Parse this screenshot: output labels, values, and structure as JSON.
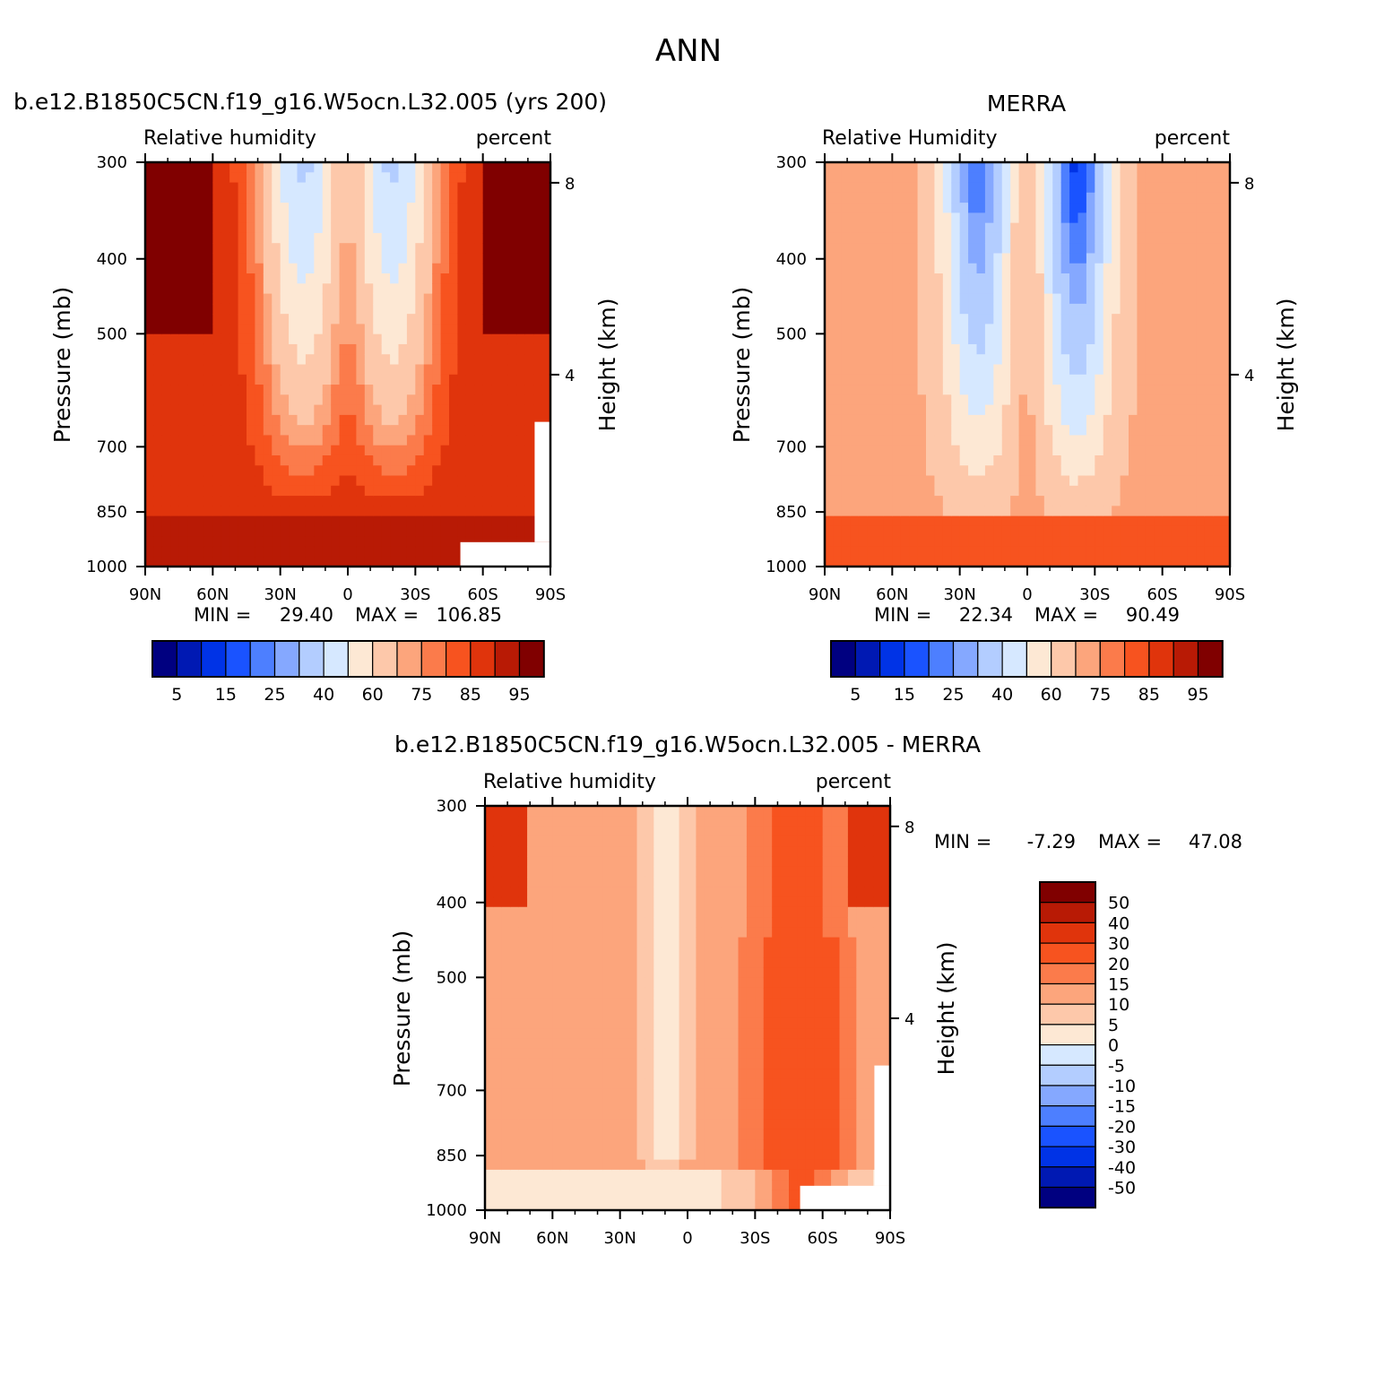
{
  "page_title": "ANN",
  "colors": {
    "rh_scale": [
      "#000080",
      "#0019b3",
      "#0033e6",
      "#1a53ff",
      "#4d7fff",
      "#85a8ff",
      "#b3cdff",
      "#d6e8ff",
      "#fde8d4",
      "#fdc8aa",
      "#fca57c",
      "#fb7b4b",
      "#f7531f",
      "#e0340c",
      "#b81a05",
      "#800000"
    ],
    "diff_scale": [
      "#000080",
      "#0019b3",
      "#0033e6",
      "#1a53ff",
      "#4d7fff",
      "#85a8ff",
      "#b3cdff",
      "#d6e8ff",
      "#fde8d4",
      "#fdc8aa",
      "#fca57c",
      "#fb7b4b",
      "#f7531f",
      "#e0340c",
      "#b81a05",
      "#800000"
    ]
  },
  "chart_data": [
    {
      "type": "heatmap",
      "title": "b.e12.B1850C5CN.f19_g16.W5ocn.L32.005 (yrs 200)",
      "left_label": "Relative humidity",
      "right_label": "percent",
      "ylabel": "Pressure (mb)",
      "right_axis_label": "Height (km)",
      "x_ticks": [
        "90N",
        "60N",
        "30N",
        "0",
        "30S",
        "60S",
        "90S"
      ],
      "y_ticks": [
        "300",
        "400",
        "500",
        "700",
        "850",
        "1000"
      ],
      "height_ticks": [
        "8",
        "4"
      ],
      "min_label": "MIN =",
      "min_value": "29.40",
      "max_label": "MAX =",
      "max_value": "106.85",
      "colorbar_labels": [
        "5",
        "15",
        "25",
        "40",
        "60",
        "75",
        "85",
        "95"
      ],
      "ylim": [
        1000,
        300
      ],
      "xlim": [
        90,
        -90
      ]
    },
    {
      "type": "heatmap",
      "title": "MERRA",
      "left_label": "Relative Humidity",
      "right_label": "percent",
      "ylabel": "Pressure (mb)",
      "right_axis_label": "Height (km)",
      "x_ticks": [
        "90N",
        "60N",
        "30N",
        "0",
        "30S",
        "60S",
        "90S"
      ],
      "y_ticks": [
        "300",
        "400",
        "500",
        "700",
        "850",
        "1000"
      ],
      "height_ticks": [
        "8",
        "4"
      ],
      "min_label": "MIN =",
      "min_value": "22.34",
      "max_label": "MAX =",
      "max_value": "90.49",
      "colorbar_labels": [
        "5",
        "15",
        "25",
        "40",
        "60",
        "75",
        "85",
        "95"
      ],
      "ylim": [
        1000,
        300
      ],
      "xlim": [
        90,
        -90
      ]
    },
    {
      "type": "heatmap",
      "title": "b.e12.B1850C5CN.f19_g16.W5ocn.L32.005 - MERRA",
      "left_label": "Relative humidity",
      "right_label": "percent",
      "ylabel": "Pressure (mb)",
      "right_axis_label": "Height (km)",
      "x_ticks": [
        "90N",
        "60N",
        "30N",
        "0",
        "30S",
        "60S",
        "90S"
      ],
      "y_ticks": [
        "300",
        "400",
        "500",
        "700",
        "850",
        "1000"
      ],
      "height_ticks": [
        "8",
        "4"
      ],
      "min_label": "MIN =",
      "min_value": "-7.29",
      "max_label": "MAX =",
      "max_value": "47.08",
      "colorbar_labels": [
        "50",
        "40",
        "30",
        "20",
        "15",
        "10",
        "5",
        "0",
        "-5",
        "-10",
        "-15",
        "-20",
        "-30",
        "-40",
        "-50"
      ],
      "ylim": [
        1000,
        300
      ],
      "xlim": [
        90,
        -90
      ]
    }
  ]
}
